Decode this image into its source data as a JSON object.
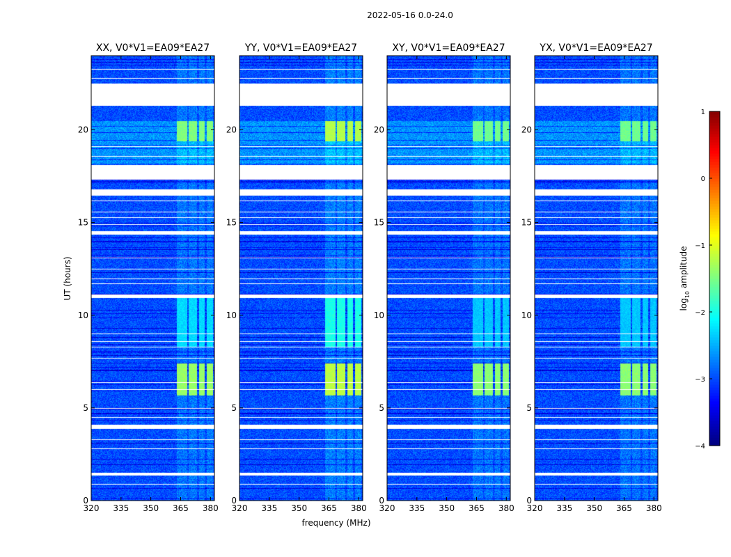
{
  "chart_data": {
    "type": "heatmap",
    "suptitle": "2022-05-16 0.0-24.0",
    "xlabel": "frequency (MHz)",
    "ylabel": "UT (hours)",
    "xlim": [
      320,
      382
    ],
    "ylim": [
      0,
      24
    ],
    "xticks": [
      320,
      335,
      350,
      365,
      380
    ],
    "yticks": [
      0,
      5,
      10,
      15,
      20
    ],
    "panels": [
      {
        "title": "XX, V0*V1=EA09*EA27",
        "pol": "XX",
        "strength": 0.85
      },
      {
        "title": "YY, V0*V1=EA09*EA27",
        "pol": "YY",
        "strength": 1.0
      },
      {
        "title": "XY, V0*V1=EA09*EA27",
        "pol": "XY",
        "strength": 0.8
      },
      {
        "title": "YX, V0*V1=EA09*EA27",
        "pol": "YX",
        "strength": 0.8
      }
    ],
    "colorbar": {
      "label": "log10 amplitude",
      "label_base": "log",
      "label_sub": "10",
      "label_rest": " amplitude",
      "range": [
        -4,
        1
      ],
      "ticks": [
        -4,
        -3,
        -2,
        -1,
        0,
        1
      ],
      "tick_labels": [
        "−4",
        "−3",
        "−2",
        "−1",
        "0",
        "1"
      ],
      "colormap": "jet"
    },
    "background_level": -3.0,
    "flagged_time_ranges_hours": [
      [
        21.35,
        22.5
      ],
      [
        17.35,
        18.1
      ],
      [
        16.5,
        16.8
      ],
      [
        10.95,
        11.1
      ],
      [
        14.4,
        14.55
      ],
      [
        3.9,
        4.1
      ],
      [
        1.4,
        1.5
      ]
    ],
    "flagged_time_lines_hours": [
      23.3,
      22.8,
      22.1,
      21.8,
      19.1,
      18.6,
      16.2,
      15.6,
      15.3,
      14.9,
      13.1,
      12.5,
      12.0,
      11.7,
      9.0,
      8.6,
      8.3,
      7.7,
      6.4,
      6.0,
      5.0,
      4.5,
      3.3,
      2.8,
      0.9
    ],
    "rfi_channel_edges_mhz": [
      [
        363,
        368
      ],
      [
        369,
        373
      ],
      [
        374,
        377
      ],
      [
        378,
        381
      ]
    ],
    "rfi_episodes": [
      {
        "t_start": 5.7,
        "t_end": 7.4,
        "level": -1.2
      },
      {
        "t_start": 19.4,
        "t_end": 20.5,
        "level": -1.6
      },
      {
        "t_start": 8.3,
        "t_end": 11.0,
        "level": -2.0
      }
    ]
  }
}
